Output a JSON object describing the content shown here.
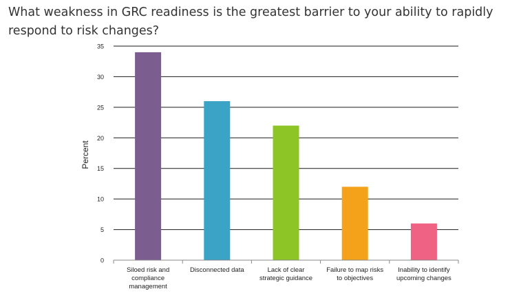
{
  "chart_data": {
    "type": "bar",
    "title": "What weakness in GRC readiness is the greatest barrier to your ability to rapidly respond to risk changes?",
    "xlabel": "",
    "ylabel": "Percent",
    "ylim": [
      0,
      35
    ],
    "yticks": [
      0,
      5,
      10,
      15,
      20,
      25,
      30,
      35
    ],
    "grid": true,
    "legend": "none",
    "categories": [
      [
        "Siloed risk and",
        "compliance",
        "management"
      ],
      [
        "Disconnected data"
      ],
      [
        "Lack of clear",
        "strategic guidance"
      ],
      [
        "Failure to map risks",
        "to objectives"
      ],
      [
        "Inability to identify",
        "upcoming changes"
      ]
    ],
    "values": [
      34,
      26,
      22,
      12,
      6
    ],
    "colors": [
      "#7b5e8f",
      "#3ba4c6",
      "#8dc426",
      "#f4a21a",
      "#ef6283"
    ]
  }
}
